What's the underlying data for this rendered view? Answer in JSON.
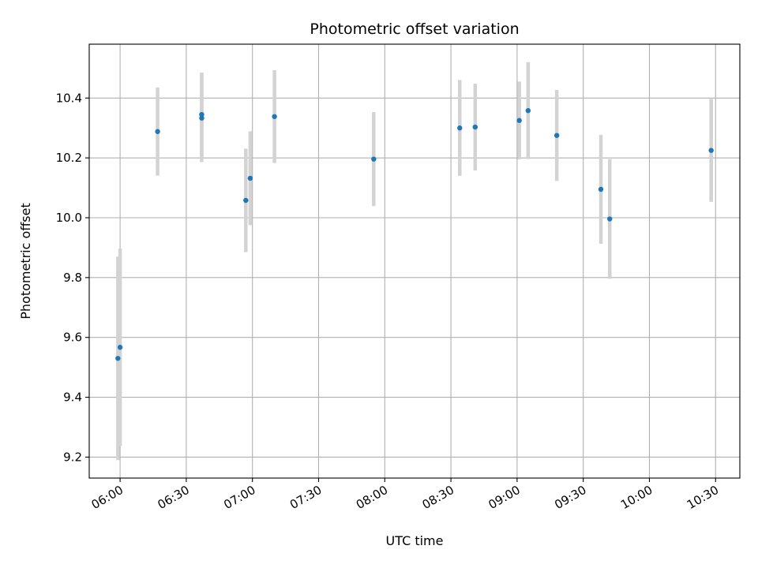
{
  "chart_data": {
    "type": "scatter",
    "title": "Photometric offset variation",
    "xlabel": "UTC time",
    "ylabel": "Photometric offset",
    "xlim": [
      "05:46",
      "10:41"
    ],
    "ylim": [
      9.13,
      10.58
    ],
    "grid": true,
    "x_ticks": [
      "06:00",
      "06:30",
      "07:00",
      "07:30",
      "08:00",
      "08:30",
      "09:00",
      "09:30",
      "10:00",
      "10:30"
    ],
    "y_ticks": [
      9.2,
      9.4,
      9.6,
      9.8,
      10.0,
      10.2,
      10.4
    ],
    "y_tick_labels": [
      "9.2",
      "9.4",
      "9.6",
      "9.8",
      "10.0",
      "10.2",
      "10.4"
    ],
    "colors": {
      "point": "#1f77b4",
      "errorbar": "#d3d3d3",
      "grid": "#b0b0b0"
    },
    "series": [
      {
        "points": [
          {
            "x": "05:59",
            "y": 9.53,
            "yerr": 0.34
          },
          {
            "x": "06:00",
            "y": 9.567,
            "yerr": 0.33
          },
          {
            "x": "06:17",
            "y": 10.288,
            "yerr": 0.147
          },
          {
            "x": "06:37",
            "y": 10.333,
            "yerr": 0.147
          },
          {
            "x": "06:37",
            "y": 10.345,
            "yerr": 0.14
          },
          {
            "x": "06:57",
            "y": 10.058,
            "yerr": 0.173
          },
          {
            "x": "06:59",
            "y": 10.132,
            "yerr": 0.157
          },
          {
            "x": "07:10",
            "y": 10.338,
            "yerr": 0.155
          },
          {
            "x": "07:55",
            "y": 10.196,
            "yerr": 0.157
          },
          {
            "x": "08:34",
            "y": 10.3,
            "yerr": 0.16
          },
          {
            "x": "08:41",
            "y": 10.303,
            "yerr": 0.145
          },
          {
            "x": "09:01",
            "y": 10.325,
            "yerr": 0.13
          },
          {
            "x": "09:05",
            "y": 10.358,
            "yerr": 0.162
          },
          {
            "x": "09:18",
            "y": 10.275,
            "yerr": 0.152
          },
          {
            "x": "09:38",
            "y": 10.095,
            "yerr": 0.182
          },
          {
            "x": "09:42",
            "y": 9.996,
            "yerr": 0.2
          },
          {
            "x": "10:28",
            "y": 10.225,
            "yerr": 0.172
          }
        ]
      }
    ]
  }
}
